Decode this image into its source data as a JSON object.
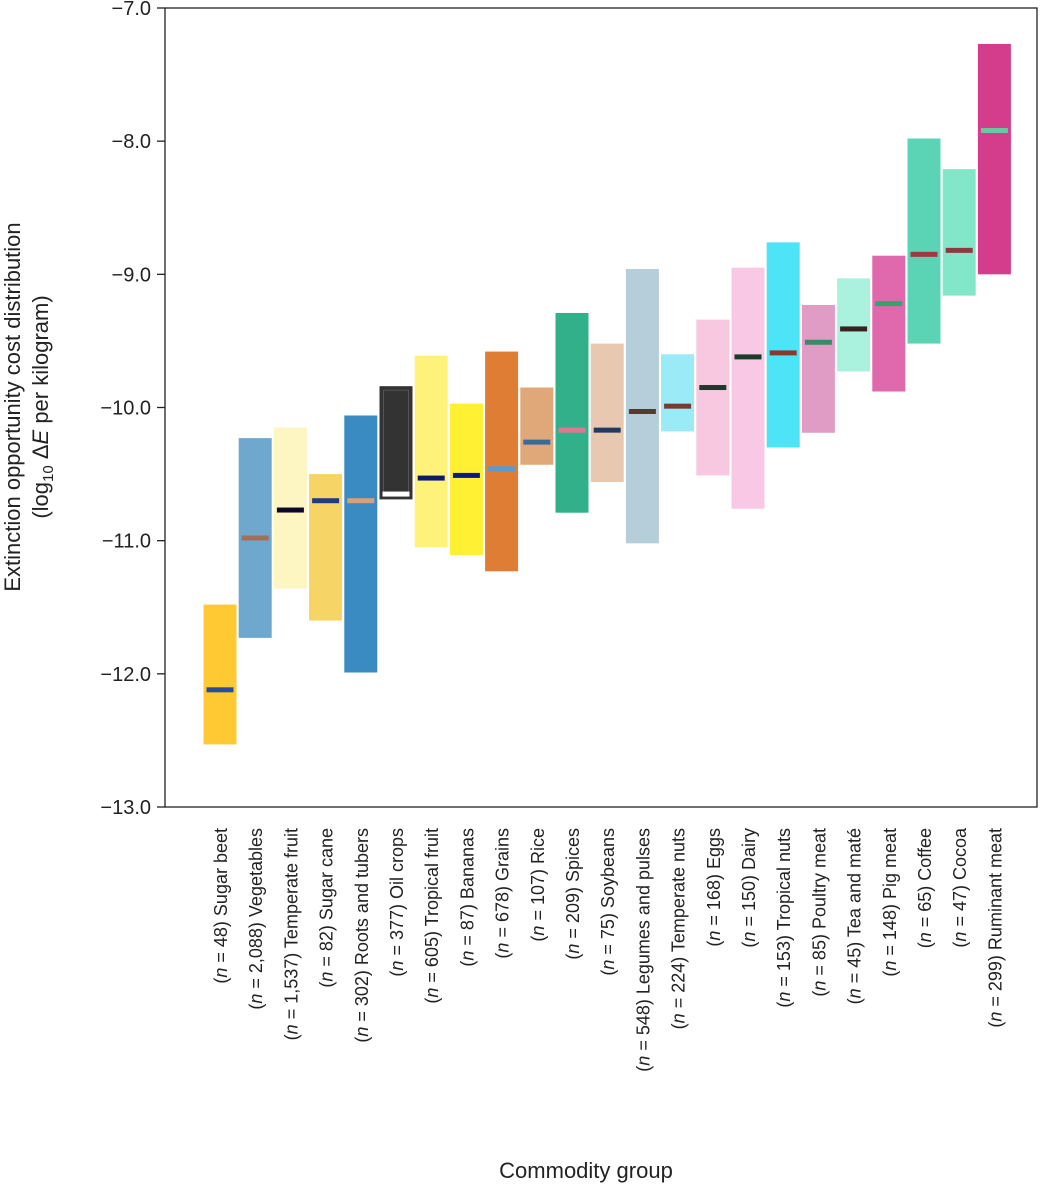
{
  "chart_data": {
    "type": "bar",
    "subtype": "floating-range-with-median",
    "title": "",
    "xlabel": "Commodity group",
    "ylabel_line1": "Extinction opportunity cost distribution",
    "ylabel_line2_prefix": "(log",
    "ylabel_line2_sub": "10",
    "ylabel_line2_delta": " Δ",
    "ylabel_line2_italic": "E",
    "ylabel_line2_suffix": " per kilogram)",
    "ylim": [
      -13.0,
      -7.0
    ],
    "yticks": [
      -13.0,
      -12.0,
      -11.0,
      -10.0,
      -9.0,
      -8.0,
      -7.0
    ],
    "ytick_labels": [
      "−13.0",
      "−12.0",
      "−11.0",
      "−10.0",
      "−9.0",
      "−8.0",
      "−7.0"
    ],
    "grid": false,
    "legend": "none",
    "categories": [
      {
        "n": "48",
        "name": "Sugar beet",
        "low": -12.53,
        "high": -11.48,
        "median": -12.12,
        "color": "#FFC933",
        "median_color": "#2A4AA0"
      },
      {
        "n": "2,088",
        "name": "Vegetables",
        "low": -11.73,
        "high": -10.23,
        "median": -10.98,
        "color": "#6FA8CF",
        "median_color": "#A0705A"
      },
      {
        "n": "1,537",
        "name": "Temperate fruit",
        "low": -11.36,
        "high": -10.15,
        "median": -10.77,
        "color": "#FDF6C3",
        "median_color": "#0A0A28"
      },
      {
        "n": "82",
        "name": "Sugar cane",
        "low": -11.6,
        "high": -10.5,
        "median": -10.7,
        "color": "#F7D466",
        "median_color": "#1E3C80"
      },
      {
        "n": "302",
        "name": "Roots and tubers",
        "low": -11.99,
        "high": -10.06,
        "median": -10.7,
        "color": "#3A8BC2",
        "median_color": "#D8A080"
      },
      {
        "n": "377",
        "name": "Oil crops",
        "low": -10.69,
        "high": -9.84,
        "median": -10.65,
        "color": "#333333",
        "median_color": "#FFFFFF"
      },
      {
        "n": "605",
        "name": "Tropical fruit",
        "low": -11.05,
        "high": -9.61,
        "median": -10.53,
        "color": "#FFF27A",
        "median_color": "#0A1A70"
      },
      {
        "n": "87",
        "name": "Bananas",
        "low": -11.11,
        "high": -9.97,
        "median": -10.51,
        "color": "#FFF033",
        "median_color": "#0A1A80"
      },
      {
        "n": "678",
        "name": "Grains",
        "low": -11.23,
        "high": -9.58,
        "median": -10.46,
        "color": "#E07D35",
        "median_color": "#5A9AD0"
      },
      {
        "n": "107",
        "name": "Rice",
        "low": -10.43,
        "high": -9.85,
        "median": -10.26,
        "color": "#E0A878",
        "median_color": "#3A6A9A"
      },
      {
        "n": "209",
        "name": "Spices",
        "low": -10.79,
        "high": -9.29,
        "median": -10.17,
        "color": "#32B08A",
        "median_color": "#E07890"
      },
      {
        "n": "75",
        "name": "Soybeans",
        "low": -10.56,
        "high": -9.52,
        "median": -10.17,
        "color": "#E8C8B0",
        "median_color": "#1E3C60"
      },
      {
        "n": "548",
        "name": "Legumes and pulses",
        "low": -11.02,
        "high": -8.96,
        "median": -10.03,
        "color": "#B5CEDA",
        "median_color": "#5A3A30"
      },
      {
        "n": "224",
        "name": "Temperate nuts",
        "low": -10.18,
        "high": -9.6,
        "median": -9.99,
        "color": "#9AEAF8",
        "median_color": "#7A3A30"
      },
      {
        "n": "168",
        "name": "Eggs",
        "low": -10.51,
        "high": -9.34,
        "median": -9.85,
        "color": "#F8C8E0",
        "median_color": "#1A3A2A"
      },
      {
        "n": "150",
        "name": "Dairy",
        "low": -10.76,
        "high": -8.95,
        "median": -9.62,
        "color": "#F8C8E4",
        "median_color": "#1A3A2A"
      },
      {
        "n": "153",
        "name": "Tropical nuts",
        "low": -10.3,
        "high": -8.76,
        "median": -9.59,
        "color": "#4DE4F8",
        "median_color": "#8A3A28"
      },
      {
        "n": "85",
        "name": "Poultry meat",
        "low": -10.19,
        "high": -9.23,
        "median": -9.51,
        "color": "#E09CC4",
        "median_color": "#3A8A6A"
      },
      {
        "n": "45",
        "name": "Tea and maté",
        "low": -9.73,
        "high": -9.03,
        "median": -9.41,
        "color": "#AAF2DE",
        "median_color": "#3A2020"
      },
      {
        "n": "148",
        "name": "Pig meat",
        "low": -9.88,
        "high": -8.86,
        "median": -9.22,
        "color": "#E068AC",
        "median_color": "#3AA070"
      },
      {
        "n": "65",
        "name": "Coffee",
        "low": -9.52,
        "high": -7.98,
        "median": -8.85,
        "color": "#5AD4B4",
        "median_color": "#A03A40"
      },
      {
        "n": "47",
        "name": "Cocoa",
        "low": -9.16,
        "high": -8.21,
        "median": -8.82,
        "color": "#82E6C8",
        "median_color": "#8A3A40"
      },
      {
        "n": "299",
        "name": "Ruminant meat",
        "low": -9.0,
        "high": -7.27,
        "median": -7.92,
        "color": "#D43C8C",
        "median_color": "#6AC8A0"
      }
    ]
  }
}
